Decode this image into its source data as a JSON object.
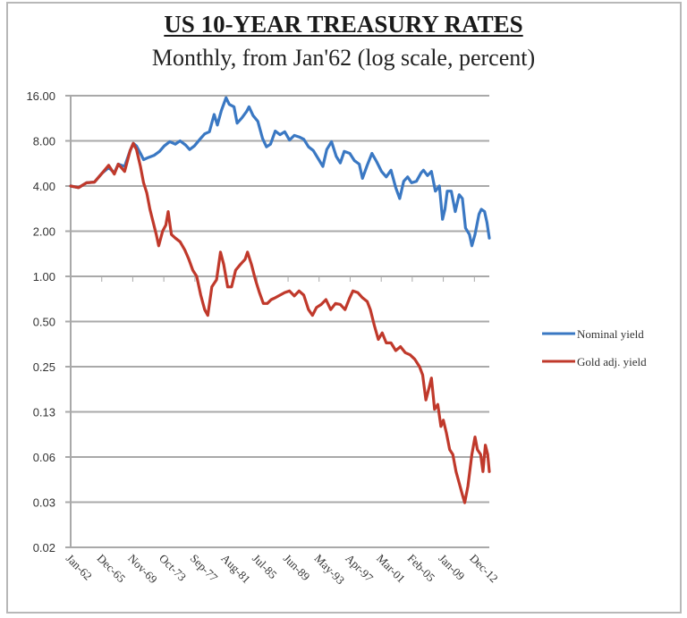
{
  "chart_data": {
    "type": "line",
    "title": "US 10-YEAR TREASURY RATES",
    "subtitle": "Monthly, from Jan'62 (log scale, percent)",
    "xlabel": "",
    "ylabel": "",
    "yscale": "log",
    "ylim": [
      0.02,
      16.0
    ],
    "xlim": [
      1962.0,
      2014.8
    ],
    "grid": true,
    "legend_position": "right",
    "y_ticks": [
      {
        "value": 16.0,
        "label": "16.00"
      },
      {
        "value": 8.0,
        "label": "8.00"
      },
      {
        "value": 4.0,
        "label": "4.00"
      },
      {
        "value": 2.0,
        "label": "2.00"
      },
      {
        "value": 1.0,
        "label": "1.00"
      },
      {
        "value": 0.5,
        "label": "0.50"
      },
      {
        "value": 0.25,
        "label": "0.25"
      },
      {
        "value": 0.125,
        "label": "0.13"
      },
      {
        "value": 0.0625,
        "label": "0.06"
      },
      {
        "value": 0.03125,
        "label": "0.03"
      },
      {
        "value": 0.015625,
        "label": "0.02"
      }
    ],
    "x_ticks": [
      {
        "value": 1962.0,
        "label": "Jan-62"
      },
      {
        "value": 1965.92,
        "label": "Dec-65"
      },
      {
        "value": 1969.83,
        "label": "Nov-69"
      },
      {
        "value": 1973.75,
        "label": "Oct-73"
      },
      {
        "value": 1977.67,
        "label": "Sep-77"
      },
      {
        "value": 1981.58,
        "label": "Aug-81"
      },
      {
        "value": 1985.5,
        "label": "Jul-85"
      },
      {
        "value": 1989.42,
        "label": "Jun-89"
      },
      {
        "value": 1993.33,
        "label": "May-93"
      },
      {
        "value": 1997.25,
        "label": "Apr-97"
      },
      {
        "value": 2001.17,
        "label": "Mar-01"
      },
      {
        "value": 2005.08,
        "label": "Feb-05"
      },
      {
        "value": 2009.0,
        "label": "Jan-09"
      },
      {
        "value": 2012.92,
        "label": "Dec-12"
      }
    ],
    "series": [
      {
        "name": "Nominal yield",
        "color": "#3a78c3",
        "points": [
          [
            1962.0,
            4.0
          ],
          [
            1963.0,
            3.9
          ],
          [
            1964.0,
            4.2
          ],
          [
            1965.0,
            4.25
          ],
          [
            1966.0,
            4.9
          ],
          [
            1966.8,
            5.3
          ],
          [
            1967.5,
            4.9
          ],
          [
            1968.0,
            5.6
          ],
          [
            1968.8,
            5.4
          ],
          [
            1969.5,
            6.9
          ],
          [
            1969.9,
            7.7
          ],
          [
            1970.3,
            7.4
          ],
          [
            1970.8,
            6.6
          ],
          [
            1971.2,
            6.0
          ],
          [
            1971.8,
            6.2
          ],
          [
            1972.5,
            6.4
          ],
          [
            1973.2,
            6.8
          ],
          [
            1973.8,
            7.4
          ],
          [
            1974.5,
            7.9
          ],
          [
            1975.2,
            7.6
          ],
          [
            1975.8,
            8.0
          ],
          [
            1976.5,
            7.5
          ],
          [
            1977.0,
            7.0
          ],
          [
            1977.6,
            7.4
          ],
          [
            1978.3,
            8.2
          ],
          [
            1978.9,
            8.9
          ],
          [
            1979.5,
            9.2
          ],
          [
            1980.1,
            12.0
          ],
          [
            1980.5,
            10.2
          ],
          [
            1981.0,
            12.7
          ],
          [
            1981.6,
            15.5
          ],
          [
            1982.0,
            14.0
          ],
          [
            1982.6,
            13.5
          ],
          [
            1983.0,
            10.5
          ],
          [
            1983.6,
            11.4
          ],
          [
            1984.2,
            12.6
          ],
          [
            1984.5,
            13.5
          ],
          [
            1985.0,
            11.8
          ],
          [
            1985.6,
            10.8
          ],
          [
            1986.2,
            8.3
          ],
          [
            1986.7,
            7.3
          ],
          [
            1987.2,
            7.6
          ],
          [
            1987.8,
            9.3
          ],
          [
            1988.4,
            8.8
          ],
          [
            1989.0,
            9.2
          ],
          [
            1989.6,
            8.1
          ],
          [
            1990.2,
            8.7
          ],
          [
            1990.8,
            8.5
          ],
          [
            1991.4,
            8.2
          ],
          [
            1992.0,
            7.3
          ],
          [
            1992.6,
            6.9
          ],
          [
            1993.3,
            6.0
          ],
          [
            1993.8,
            5.4
          ],
          [
            1994.3,
            7.0
          ],
          [
            1994.9,
            7.9
          ],
          [
            1995.5,
            6.3
          ],
          [
            1996.0,
            5.7
          ],
          [
            1996.5,
            6.8
          ],
          [
            1997.2,
            6.6
          ],
          [
            1997.8,
            5.9
          ],
          [
            1998.4,
            5.6
          ],
          [
            1998.8,
            4.5
          ],
          [
            1999.4,
            5.5
          ],
          [
            2000.0,
            6.6
          ],
          [
            2000.6,
            5.8
          ],
          [
            2001.2,
            5.0
          ],
          [
            2001.8,
            4.6
          ],
          [
            2002.4,
            5.1
          ],
          [
            2003.0,
            3.9
          ],
          [
            2003.5,
            3.3
          ],
          [
            2004.0,
            4.3
          ],
          [
            2004.5,
            4.6
          ],
          [
            2005.0,
            4.2
          ],
          [
            2005.6,
            4.3
          ],
          [
            2006.2,
            4.9
          ],
          [
            2006.5,
            5.1
          ],
          [
            2007.0,
            4.7
          ],
          [
            2007.5,
            5.0
          ],
          [
            2008.0,
            3.7
          ],
          [
            2008.5,
            4.0
          ],
          [
            2008.9,
            2.4
          ],
          [
            2009.2,
            2.8
          ],
          [
            2009.5,
            3.7
          ],
          [
            2010.0,
            3.7
          ],
          [
            2010.5,
            2.7
          ],
          [
            2011.0,
            3.5
          ],
          [
            2011.4,
            3.3
          ],
          [
            2011.8,
            2.1
          ],
          [
            2012.3,
            1.9
          ],
          [
            2012.6,
            1.6
          ],
          [
            2013.0,
            1.9
          ],
          [
            2013.5,
            2.6
          ],
          [
            2013.8,
            2.8
          ],
          [
            2014.2,
            2.7
          ],
          [
            2014.5,
            2.3
          ],
          [
            2014.8,
            1.8
          ]
        ]
      },
      {
        "name": "Gold adj. yield",
        "color": "#c0392b",
        "points": [
          [
            1962.0,
            4.0
          ],
          [
            1963.0,
            3.9
          ],
          [
            1964.0,
            4.2
          ],
          [
            1965.0,
            4.25
          ],
          [
            1966.0,
            4.9
          ],
          [
            1966.8,
            5.5
          ],
          [
            1967.5,
            4.8
          ],
          [
            1968.0,
            5.6
          ],
          [
            1968.8,
            5.0
          ],
          [
            1969.5,
            6.9
          ],
          [
            1969.9,
            7.7
          ],
          [
            1970.3,
            7.0
          ],
          [
            1970.8,
            5.4
          ],
          [
            1971.2,
            4.2
          ],
          [
            1971.6,
            3.6
          ],
          [
            1972.0,
            2.8
          ],
          [
            1972.4,
            2.3
          ],
          [
            1972.8,
            1.9
          ],
          [
            1973.1,
            1.6
          ],
          [
            1973.6,
            2.0
          ],
          [
            1974.0,
            2.2
          ],
          [
            1974.3,
            2.7
          ],
          [
            1974.7,
            1.9
          ],
          [
            1975.2,
            1.8
          ],
          [
            1975.8,
            1.7
          ],
          [
            1976.4,
            1.5
          ],
          [
            1976.9,
            1.3
          ],
          [
            1977.4,
            1.1
          ],
          [
            1977.9,
            1.0
          ],
          [
            1978.4,
            0.75
          ],
          [
            1978.9,
            0.6
          ],
          [
            1979.3,
            0.55
          ],
          [
            1979.8,
            0.85
          ],
          [
            1980.4,
            0.95
          ],
          [
            1980.9,
            1.45
          ],
          [
            1981.3,
            1.2
          ],
          [
            1981.8,
            0.85
          ],
          [
            1982.3,
            0.85
          ],
          [
            1982.8,
            1.1
          ],
          [
            1983.4,
            1.2
          ],
          [
            1984.0,
            1.3
          ],
          [
            1984.3,
            1.45
          ],
          [
            1984.8,
            1.2
          ],
          [
            1985.3,
            0.95
          ],
          [
            1985.8,
            0.78
          ],
          [
            1986.3,
            0.66
          ],
          [
            1986.8,
            0.66
          ],
          [
            1987.3,
            0.7
          ],
          [
            1987.8,
            0.72
          ],
          [
            1988.4,
            0.75
          ],
          [
            1989.0,
            0.78
          ],
          [
            1989.6,
            0.8
          ],
          [
            1990.2,
            0.74
          ],
          [
            1990.8,
            0.8
          ],
          [
            1991.4,
            0.75
          ],
          [
            1992.0,
            0.6
          ],
          [
            1992.5,
            0.55
          ],
          [
            1993.0,
            0.62
          ],
          [
            1993.6,
            0.65
          ],
          [
            1994.2,
            0.7
          ],
          [
            1994.8,
            0.6
          ],
          [
            1995.4,
            0.66
          ],
          [
            1996.0,
            0.65
          ],
          [
            1996.6,
            0.6
          ],
          [
            1997.2,
            0.72
          ],
          [
            1997.6,
            0.8
          ],
          [
            1998.2,
            0.78
          ],
          [
            1998.8,
            0.72
          ],
          [
            1999.4,
            0.68
          ],
          [
            1999.8,
            0.6
          ],
          [
            2000.3,
            0.47
          ],
          [
            2000.8,
            0.38
          ],
          [
            2001.3,
            0.42
          ],
          [
            2001.8,
            0.36
          ],
          [
            2002.4,
            0.36
          ],
          [
            2003.0,
            0.32
          ],
          [
            2003.6,
            0.34
          ],
          [
            2004.2,
            0.31
          ],
          [
            2004.8,
            0.3
          ],
          [
            2005.4,
            0.28
          ],
          [
            2006.0,
            0.25
          ],
          [
            2006.4,
            0.22
          ],
          [
            2006.8,
            0.15
          ],
          [
            2007.2,
            0.18
          ],
          [
            2007.5,
            0.21
          ],
          [
            2007.9,
            0.13
          ],
          [
            2008.3,
            0.14
          ],
          [
            2008.7,
            0.1
          ],
          [
            2009.0,
            0.11
          ],
          [
            2009.4,
            0.09
          ],
          [
            2009.8,
            0.07
          ],
          [
            2010.2,
            0.065
          ],
          [
            2010.6,
            0.05
          ],
          [
            2011.0,
            0.042
          ],
          [
            2011.4,
            0.035
          ],
          [
            2011.7,
            0.031
          ],
          [
            2012.1,
            0.04
          ],
          [
            2012.6,
            0.065
          ],
          [
            2013.0,
            0.085
          ],
          [
            2013.3,
            0.07
          ],
          [
            2013.7,
            0.065
          ],
          [
            2014.0,
            0.05
          ],
          [
            2014.3,
            0.075
          ],
          [
            2014.6,
            0.065
          ],
          [
            2014.8,
            0.05
          ]
        ]
      }
    ]
  }
}
